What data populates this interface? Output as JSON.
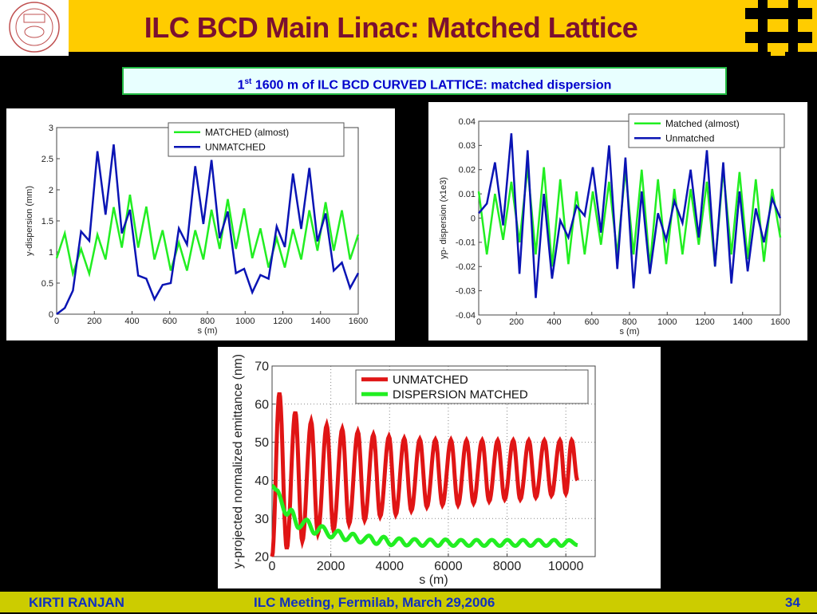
{
  "header": {
    "title": "ILC BCD Main Linac: Matched Lattice"
  },
  "subtitle": {
    "sup_num": "1",
    "sup": "st",
    "text": " 1600 m of  ILC  BCD  CURVED LATTICE: matched dispersion"
  },
  "footer": {
    "author": "KIRTI  RANJAN",
    "event": "ILC Meeting, Fermilab, March 29,2006",
    "page": "34"
  },
  "colors": {
    "header_bg": "#FFCC00",
    "title": "#7B1030",
    "green": "#22EE22",
    "blue": "#0A14B4",
    "red": "#E01515",
    "footer_bg": "#CCCC00"
  },
  "chart_data": [
    {
      "type": "line",
      "title": "",
      "xlabel": "s (m)",
      "ylabel": "y-dispersion (mm)",
      "xlim": [
        0,
        1600
      ],
      "ylim": [
        0,
        3
      ],
      "xticks": [
        "0",
        "200",
        "400",
        "600",
        "800",
        "1000",
        "1200",
        "1400",
        "1600"
      ],
      "yticks": [
        "0",
        "0.5",
        "1",
        "1.5",
        "2",
        "2.5",
        "3"
      ],
      "grid": false,
      "legend_position": "top-right",
      "x_step": 43.24,
      "series": [
        {
          "name": "MATCHED (almost)",
          "color": "#22EE22",
          "values": [
            0.9,
            1.3,
            0.65,
            1.05,
            0.65,
            1.28,
            0.88,
            1.72,
            1.07,
            1.92,
            1.07,
            1.73,
            0.88,
            1.35,
            0.7,
            1.15,
            0.7,
            1.35,
            0.88,
            1.68,
            1.05,
            1.85,
            1.05,
            1.7,
            0.9,
            1.38,
            0.75,
            1.22,
            0.75,
            1.37,
            0.88,
            1.67,
            1.02,
            1.8,
            1.02,
            1.67,
            0.88,
            1.28
          ]
        },
        {
          "name": "UNMATCHED",
          "color": "#0A14B4",
          "values": [
            0,
            0.1,
            0.38,
            1.33,
            1.18,
            2.62,
            1.6,
            2.73,
            1.3,
            1.68,
            0.62,
            0.57,
            0.24,
            0.47,
            0.5,
            1.38,
            1.12,
            2.38,
            1.45,
            2.48,
            1.22,
            1.65,
            0.66,
            0.73,
            0.35,
            0.63,
            0.57,
            1.41,
            1.08,
            2.26,
            1.37,
            2.35,
            1.17,
            1.62,
            0.7,
            0.83,
            0.42,
            0.66
          ]
        }
      ]
    },
    {
      "type": "line",
      "title": "",
      "xlabel": "s (m)",
      "ylabel": "yp- dispersion (x1e3)",
      "xlim": [
        0,
        1600
      ],
      "ylim": [
        -0.04,
        0.04
      ],
      "xticks": [
        "0",
        "200",
        "400",
        "600",
        "800",
        "1000",
        "1200",
        "1400",
        "1600"
      ],
      "yticks": [
        "-0.04",
        "-0.03",
        "-0.02",
        "-0.01",
        "0",
        "0.01",
        "0.02",
        "0.03",
        "0.04"
      ],
      "grid": false,
      "legend_position": "top-right",
      "x_step": 43.24,
      "series": [
        {
          "name": "Matched (almost)",
          "color": "#22EE22",
          "values": [
            0.011,
            -0.015,
            0.01,
            -0.009,
            0.015,
            -0.01,
            0.021,
            -0.015,
            0.021,
            -0.02,
            0.016,
            -0.019,
            0.011,
            -0.015,
            0.011,
            -0.011,
            0.015,
            -0.015,
            0.02,
            -0.015,
            0.02,
            -0.02,
            0.016,
            -0.019,
            0.012,
            -0.015,
            0.012,
            -0.011,
            0.015,
            -0.02,
            0.02,
            -0.015,
            0.019,
            -0.017,
            0.016,
            -0.018,
            0.012,
            -0.008
          ]
        },
        {
          "name": "Unmatched",
          "color": "#0A14B4",
          "values": [
            0.002,
            0.006,
            0.023,
            -0.003,
            0.035,
            -0.023,
            0.028,
            -0.033,
            0.01,
            -0.025,
            -0.001,
            -0.008,
            0.005,
            0.001,
            0.021,
            -0.006,
            0.03,
            -0.021,
            0.025,
            -0.029,
            0.011,
            -0.023,
            0.002,
            -0.009,
            0.007,
            -0.002,
            0.02,
            -0.008,
            0.028,
            -0.02,
            0.023,
            -0.027,
            0.011,
            -0.022,
            0.004,
            -0.01,
            0.008,
            0.0
          ]
        }
      ]
    },
    {
      "type": "line",
      "title": "",
      "xlabel": "s (m)",
      "ylabel": "y-projected normalized emittance (nm)",
      "xlim": [
        0,
        11000
      ],
      "ylim": [
        20,
        70
      ],
      "xticks": [
        "0",
        "2000",
        "4000",
        "6000",
        "8000",
        "10000"
      ],
      "yticks": [
        "20",
        "30",
        "40",
        "50",
        "60",
        "70"
      ],
      "grid": true,
      "legend_position": "top-right",
      "series": [
        {
          "name": "UNMATCHED",
          "color": "#E01515",
          "x": [
            0,
            250,
            500,
            790,
            1030,
            1330,
            1560,
            1860,
            2090,
            2390,
            2620,
            2920,
            3150,
            3450,
            3680,
            3980,
            4210,
            4500,
            4740,
            5030,
            5270,
            5560,
            5800,
            6090,
            6330,
            6620,
            6860,
            7150,
            7390,
            7680,
            7920,
            8210,
            8450,
            8740,
            8980,
            9270,
            9510,
            9800,
            10000,
            10200,
            10400
          ],
          "y": [
            20,
            63,
            22,
            58,
            24,
            55.5,
            26,
            54.5,
            27,
            53.5,
            28.5,
            52.8,
            29.5,
            52,
            30.5,
            51.5,
            31,
            51,
            32,
            50.8,
            33,
            50.7,
            33.5,
            50.6,
            33.5,
            50.5,
            34,
            50.5,
            34.5,
            50.5,
            35,
            50.5,
            35,
            50.5,
            35.5,
            50.5,
            36,
            50.5,
            36.5,
            50.5,
            40
          ]
        },
        {
          "name": "DISPERSION MATCHED",
          "color": "#22EE22",
          "x": [
            0,
            150,
            500,
            650,
            900,
            1180,
            1450,
            1700,
            2000,
            2250,
            2500,
            2750,
            3000,
            3300,
            3550,
            3800,
            4050,
            4330,
            4580,
            4850,
            5120,
            5380,
            5650,
            5900,
            6170,
            6430,
            6700,
            6960,
            7220,
            7480,
            7750,
            8010,
            8280,
            8540,
            8800,
            9070,
            9330,
            9600,
            9850,
            10100,
            10400
          ],
          "y": [
            38.5,
            37.5,
            31,
            32.3,
            27.5,
            29.7,
            26,
            28,
            25,
            26.8,
            24.3,
            26,
            23.7,
            25.5,
            23.3,
            25.2,
            23,
            24.8,
            22.9,
            24.6,
            22.8,
            24.5,
            22.8,
            24.5,
            22.8,
            24.4,
            22.8,
            24.4,
            22.8,
            24.4,
            22.8,
            24.4,
            22.8,
            24.4,
            22.8,
            24.4,
            22.8,
            24.4,
            22.8,
            24.3,
            23
          ]
        }
      ]
    }
  ]
}
